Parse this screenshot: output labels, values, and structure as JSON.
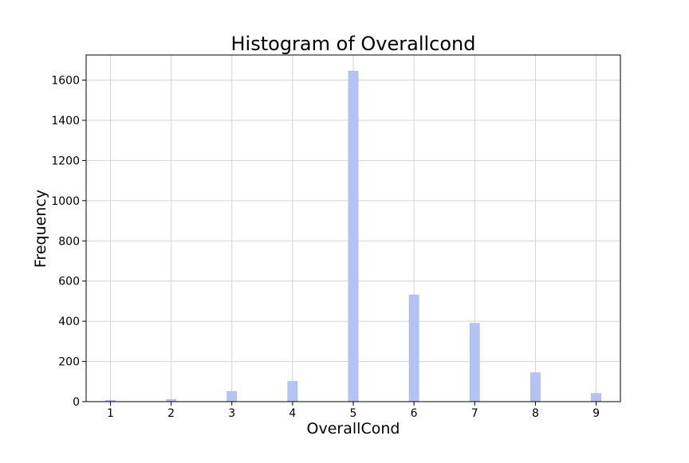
{
  "chart_data": {
    "type": "bar",
    "title": "Histogram of Overallcond",
    "xlabel": "OverallCond",
    "ylabel": "Frequency",
    "x": [
      1,
      2,
      3,
      4,
      5,
      6,
      7,
      8,
      9
    ],
    "values": [
      7,
      11,
      51,
      101,
      1645,
      531,
      390,
      144,
      41
    ],
    "bin_width": 0.16,
    "xlim": [
      0.6,
      9.4
    ],
    "ylim": [
      0,
      1725
    ],
    "xticks": [
      1,
      2,
      3,
      4,
      5,
      6,
      7,
      8,
      9
    ],
    "xtick_labels": [
      "1",
      "2",
      "3",
      "4",
      "5",
      "6",
      "7",
      "8",
      "9"
    ],
    "yticks": [
      0,
      200,
      400,
      600,
      800,
      1000,
      1200,
      1400,
      1600
    ],
    "ytick_labels": [
      "0",
      "200",
      "400",
      "600",
      "800",
      "1000",
      "1200",
      "1400",
      "1600"
    ],
    "grid": true,
    "bar_color": "#b3c3f2",
    "bar_edge_color": "#a3b6ee",
    "grid_color": "#d3d3d3"
  }
}
